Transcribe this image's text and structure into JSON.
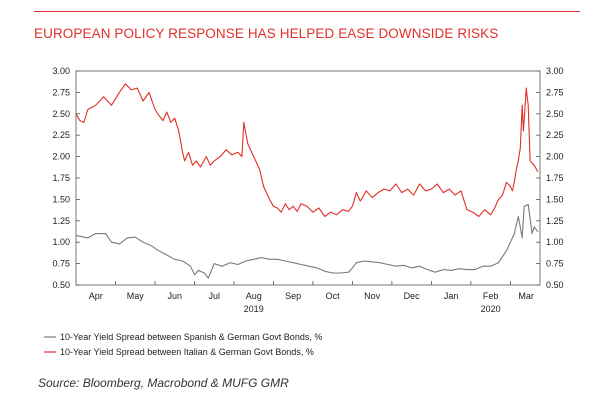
{
  "title": "EUROPEAN POLICY RESPONSE HAS HELPED EASE DOWNSIDE RISKS",
  "source": "Source: Bloomberg, Macrobond & MUFG GMR",
  "chart_data": {
    "type": "line",
    "title": "EUROPEAN POLICY RESPONSE HAS HELPED EASE DOWNSIDE RISKS",
    "ylim": [
      0.5,
      3.0
    ],
    "yticks": [
      "0.50",
      "0.75",
      "1.00",
      "1.25",
      "1.50",
      "1.75",
      "2.00",
      "2.25",
      "2.50",
      "2.75",
      "3.00"
    ],
    "xlim": [
      0,
      11.75
    ],
    "x_ticks": [
      {
        "label": "Apr",
        "x": 0.5
      },
      {
        "label": "May",
        "x": 1.5
      },
      {
        "label": "Jun",
        "x": 2.5
      },
      {
        "label": "Jul",
        "x": 3.5
      },
      {
        "label": "Aug",
        "x": 4.5
      },
      {
        "label": "Sep",
        "x": 5.5
      },
      {
        "label": "Oct",
        "x": 6.5
      },
      {
        "label": "Nov",
        "x": 7.5
      },
      {
        "label": "Dec",
        "x": 8.5
      },
      {
        "label": "Jan",
        "x": 9.5
      },
      {
        "label": "Feb",
        "x": 10.5
      },
      {
        "label": "Mar",
        "x": 11.4
      }
    ],
    "year_labels": [
      {
        "label": "2019",
        "x": 4.5
      },
      {
        "label": "2020",
        "x": 10.5
      }
    ],
    "series": [
      {
        "name": "10-Year Yield Spread between Spanish & German Govt Bonds, %",
        "color": "#7a7a7a",
        "x": [
          0,
          0.3,
          0.5,
          0.75,
          0.9,
          1.1,
          1.3,
          1.5,
          1.7,
          1.9,
          2.1,
          2.3,
          2.5,
          2.7,
          2.9,
          3.0,
          3.1,
          3.25,
          3.35,
          3.5,
          3.7,
          3.9,
          4.1,
          4.3,
          4.5,
          4.7,
          4.9,
          5.1,
          5.3,
          5.5,
          5.7,
          5.9,
          6.1,
          6.3,
          6.5,
          6.7,
          6.9,
          7.0,
          7.1,
          7.3,
          7.5,
          7.7,
          7.9,
          8.1,
          8.3,
          8.5,
          8.7,
          8.9,
          9.1,
          9.3,
          9.5,
          9.7,
          9.9,
          10.1,
          10.3,
          10.5,
          10.7,
          10.9,
          11.0,
          11.1,
          11.2,
          11.3,
          11.35,
          11.45,
          11.55,
          11.6,
          11.7
        ],
        "values": [
          1.08,
          1.05,
          1.1,
          1.1,
          1.0,
          0.98,
          1.05,
          1.06,
          1.0,
          0.96,
          0.9,
          0.85,
          0.8,
          0.78,
          0.72,
          0.62,
          0.67,
          0.64,
          0.58,
          0.75,
          0.72,
          0.76,
          0.74,
          0.78,
          0.8,
          0.82,
          0.8,
          0.8,
          0.78,
          0.76,
          0.74,
          0.72,
          0.7,
          0.66,
          0.64,
          0.64,
          0.65,
          0.7,
          0.76,
          0.78,
          0.77,
          0.76,
          0.74,
          0.72,
          0.73,
          0.7,
          0.72,
          0.68,
          0.65,
          0.68,
          0.67,
          0.69,
          0.68,
          0.68,
          0.72,
          0.72,
          0.76,
          0.9,
          1.0,
          1.1,
          1.3,
          1.05,
          1.42,
          1.44,
          1.1,
          1.18,
          1.12
        ]
      },
      {
        "name": "10-Year Yield Spread between Italian & German Govt Bonds, %",
        "color": "#e03028",
        "x": [
          0,
          0.1,
          0.2,
          0.3,
          0.5,
          0.7,
          0.9,
          1.1,
          1.25,
          1.4,
          1.55,
          1.7,
          1.85,
          2.0,
          2.1,
          2.2,
          2.3,
          2.4,
          2.5,
          2.6,
          2.7,
          2.75,
          2.85,
          2.95,
          3.05,
          3.15,
          3.3,
          3.4,
          3.5,
          3.65,
          3.8,
          3.95,
          4.1,
          4.2,
          4.25,
          4.35,
          4.5,
          4.65,
          4.75,
          4.9,
          5.0,
          5.1,
          5.2,
          5.3,
          5.4,
          5.5,
          5.6,
          5.7,
          5.85,
          6.0,
          6.15,
          6.3,
          6.45,
          6.6,
          6.75,
          6.9,
          7.0,
          7.1,
          7.2,
          7.35,
          7.5,
          7.65,
          7.8,
          7.95,
          8.1,
          8.25,
          8.4,
          8.55,
          8.7,
          8.85,
          9.0,
          9.15,
          9.3,
          9.45,
          9.6,
          9.75,
          9.9,
          10.05,
          10.2,
          10.35,
          10.5,
          10.6,
          10.7,
          10.8,
          10.9,
          11.0,
          11.05,
          11.1,
          11.15,
          11.2,
          11.25,
          11.3,
          11.33,
          11.36,
          11.4,
          11.45,
          11.5,
          11.6,
          11.7
        ],
        "values": [
          2.5,
          2.42,
          2.4,
          2.55,
          2.6,
          2.7,
          2.6,
          2.75,
          2.85,
          2.78,
          2.8,
          2.65,
          2.75,
          2.55,
          2.48,
          2.42,
          2.52,
          2.4,
          2.45,
          2.3,
          2.05,
          1.95,
          2.05,
          1.9,
          1.95,
          1.88,
          2.0,
          1.9,
          1.95,
          2.0,
          2.08,
          2.02,
          2.05,
          2.0,
          2.4,
          2.15,
          2.0,
          1.85,
          1.65,
          1.5,
          1.42,
          1.4,
          1.35,
          1.45,
          1.38,
          1.42,
          1.36,
          1.45,
          1.42,
          1.35,
          1.4,
          1.3,
          1.35,
          1.32,
          1.38,
          1.36,
          1.42,
          1.58,
          1.48,
          1.6,
          1.52,
          1.58,
          1.62,
          1.6,
          1.68,
          1.58,
          1.62,
          1.55,
          1.68,
          1.6,
          1.62,
          1.68,
          1.58,
          1.62,
          1.55,
          1.6,
          1.38,
          1.35,
          1.3,
          1.38,
          1.32,
          1.4,
          1.5,
          1.55,
          1.7,
          1.65,
          1.6,
          1.7,
          1.85,
          1.95,
          2.1,
          2.6,
          2.3,
          2.5,
          2.8,
          2.6,
          1.95,
          1.9,
          1.82
        ]
      }
    ]
  }
}
